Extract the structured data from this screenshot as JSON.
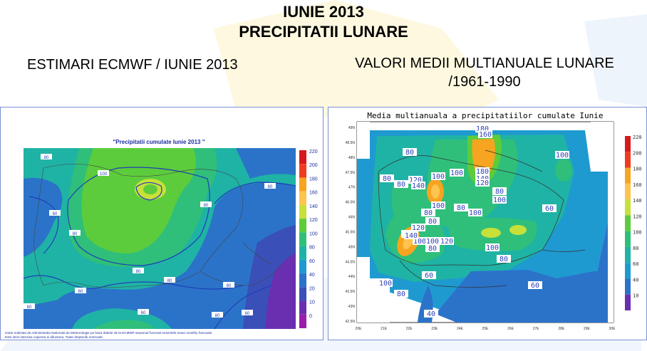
{
  "header": {
    "title_line1": "IUNIE 2013",
    "title_line2": "PRECIPITATII LUNARE",
    "left_subtitle": "ESTIMARI ECMWF / IUNIE 2013",
    "right_subtitle_line1": "VALORI MEDII MULTIANUALE LUNARE",
    "right_subtitle_line2": "/1961-1990"
  },
  "left_map": {
    "title": "\"Precipitatii cumulate Iunie 2013 \"",
    "legend_values": [
      "220",
      "200",
      "180",
      "160",
      "140",
      "120",
      "100",
      "80",
      "60",
      "40",
      "20",
      "10",
      "0"
    ],
    "legend_colors": [
      "#d7191c",
      "#f03b20",
      "#f7a420",
      "#fec44f",
      "#c7e03a",
      "#5ccc3c",
      "#2fbf7a",
      "#1fb3a5",
      "#1e9ad0",
      "#2b73c9",
      "#3a4fb8",
      "#6a2fb0",
      "#9a1fa8"
    ],
    "contour_labels": [
      "80",
      "100",
      "80",
      "60",
      "80",
      "80",
      "80",
      "80",
      "60",
      "60",
      "80",
      "60",
      "80",
      "60"
    ],
    "footer_line1": "Harta realizata de Administratia Nationala de Meteorologie pe baza datelor de la ECMWF-seasonal forecast ensemble mean monthly forecasts",
    "footer_line2": "Este strict interzisa copierea si difuzarea. Toate drepturile rezervate."
  },
  "right_map": {
    "title": "Media multianuala a precipitatiilor cumulate Iunie",
    "lat_labels": [
      "49N",
      "48.5N",
      "48N",
      "47.5N",
      "47N",
      "46.5N",
      "46N",
      "45.5N",
      "45N",
      "44.5N",
      "44N",
      "43.5N",
      "43N",
      "42.5N"
    ],
    "lon_labels": [
      "20E",
      "21E",
      "22E",
      "23E",
      "24E",
      "25E",
      "26E",
      "27E",
      "28E",
      "29E",
      "30E"
    ],
    "legend_values": [
      "220",
      "200",
      "180",
      "160",
      "140",
      "120",
      "100",
      "80",
      "60",
      "40",
      "10"
    ],
    "legend_colors": [
      "#d7191c",
      "#f03b20",
      "#f7a420",
      "#fec44f",
      "#c7e03a",
      "#5ccc3c",
      "#2fbf7a",
      "#1fb3a5",
      "#1e9ad0",
      "#2b73c9",
      "#6a2fb0"
    ],
    "contour_labels": [
      "180",
      "160",
      "80",
      "100",
      "80",
      "100",
      "120",
      "140",
      "100",
      "180",
      "140",
      "120",
      "80",
      "100",
      "80",
      "80",
      "100",
      "80",
      "100",
      "80",
      "120",
      "100",
      "80",
      "140",
      "100",
      "80",
      "120",
      "100",
      "80",
      "60",
      "60",
      "100",
      "80",
      "60",
      "40"
    ]
  }
}
